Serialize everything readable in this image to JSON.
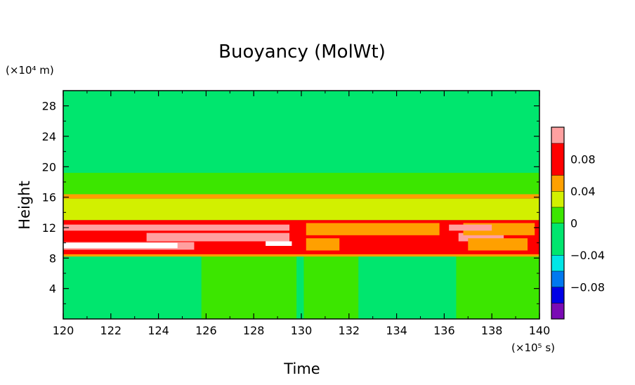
{
  "chart_data": {
    "type": "heatmap",
    "title": "Buoyancy (MolWt)",
    "xlabel": "Time",
    "ylabel": "Height",
    "x_scale_note": "(×10⁵ s)",
    "y_scale_note": "(×10⁴ m)",
    "xlim": [
      120,
      140
    ],
    "ylim": [
      0,
      30
    ],
    "x_ticks": [
      "120",
      "122",
      "124",
      "126",
      "128",
      "130",
      "132",
      "134",
      "136",
      "138",
      "140"
    ],
    "x_tick_values": [
      120,
      122,
      124,
      126,
      128,
      130,
      132,
      134,
      136,
      138,
      140
    ],
    "y_ticks": [
      "4",
      "8",
      "12",
      "16",
      "20",
      "24",
      "28"
    ],
    "y_tick_values": [
      4,
      8,
      12,
      16,
      20,
      24,
      28
    ],
    "colorbar": {
      "labels": [
        "0.08",
        "0.04",
        "0",
        "−0.04",
        "−0.08"
      ],
      "label_values": [
        0.08,
        0.04,
        0,
        -0.04,
        -0.08
      ],
      "levels": [
        {
          "min": -0.12,
          "max": -0.1,
          "color": "#7a0ab4"
        },
        {
          "min": -0.1,
          "max": -0.08,
          "color": "#0000e6"
        },
        {
          "min": -0.08,
          "max": -0.06,
          "color": "#0078f0"
        },
        {
          "min": -0.06,
          "max": -0.04,
          "color": "#00e6e6"
        },
        {
          "min": -0.04,
          "max": 0.0,
          "color": "#00e66e"
        },
        {
          "min": 0.0,
          "max": 0.02,
          "color": "#3ce600"
        },
        {
          "min": 0.02,
          "max": 0.04,
          "color": "#d2f000"
        },
        {
          "min": 0.04,
          "max": 0.06,
          "color": "#ffa000"
        },
        {
          "min": 0.06,
          "max": 0.1,
          "color": "#ff0000"
        },
        {
          "min": 0.1,
          "max": 0.12,
          "color": "#ffa0a0"
        }
      ]
    },
    "bands": [
      {
        "y0": 0,
        "y1": 8.5,
        "level": 0.01,
        "x_ranges": [
          [
            125.8,
            129.8
          ],
          [
            130.1,
            132.4
          ],
          [
            136.5,
            140
          ]
        ]
      },
      {
        "y0": 0,
        "y1": 8.5,
        "level": -0.01,
        "x_ranges": [
          [
            120,
            125.8
          ],
          [
            129.8,
            130.1
          ],
          [
            132.4,
            136.5
          ]
        ]
      },
      {
        "y0": 8.2,
        "y1": 8.7,
        "level": 0.05,
        "x_ranges": [
          [
            120,
            140
          ]
        ]
      },
      {
        "y0": 8.5,
        "y1": 13,
        "level": 0.08,
        "x_ranges": [
          [
            120,
            140
          ]
        ]
      },
      {
        "y0": 9.1,
        "y1": 10.1,
        "level": 0.11,
        "x_ranges": [
          [
            120,
            125.5
          ]
        ]
      },
      {
        "y0": 9.3,
        "y1": 10.0,
        "level": 0.13,
        "x_ranges": [
          [
            120,
            124.8
          ]
        ]
      },
      {
        "y0": 10.2,
        "y1": 11.3,
        "level": 0.11,
        "x_ranges": [
          [
            123.5,
            129.5
          ],
          [
            136.6,
            138.5
          ]
        ]
      },
      {
        "y0": 9.6,
        "y1": 10.2,
        "level": 0.13,
        "x_ranges": [
          [
            128.5,
            129.6
          ]
        ]
      },
      {
        "y0": 11.0,
        "y1": 12.6,
        "level": 0.05,
        "x_ranges": [
          [
            130.2,
            135.8
          ],
          [
            136.8,
            139.8
          ]
        ]
      },
      {
        "y0": 9.0,
        "y1": 10.6,
        "level": 0.05,
        "x_ranges": [
          [
            130.2,
            131.6
          ],
          [
            137.0,
            139.5
          ]
        ]
      },
      {
        "y0": 11.6,
        "y1": 12.4,
        "level": 0.11,
        "x_ranges": [
          [
            120,
            129.5
          ],
          [
            136.2,
            138.0
          ]
        ]
      },
      {
        "y0": 13,
        "y1": 15.8,
        "level": 0.03,
        "x_ranges": [
          [
            120,
            140
          ]
        ]
      },
      {
        "y0": 15.8,
        "y1": 16.4,
        "level": 0.05,
        "x_ranges": [
          [
            120,
            140
          ]
        ]
      },
      {
        "y0": 16.4,
        "y1": 19.2,
        "level": 0.01,
        "x_ranges": [
          [
            120,
            140
          ]
        ]
      }
    ],
    "background_level": -0.01
  }
}
